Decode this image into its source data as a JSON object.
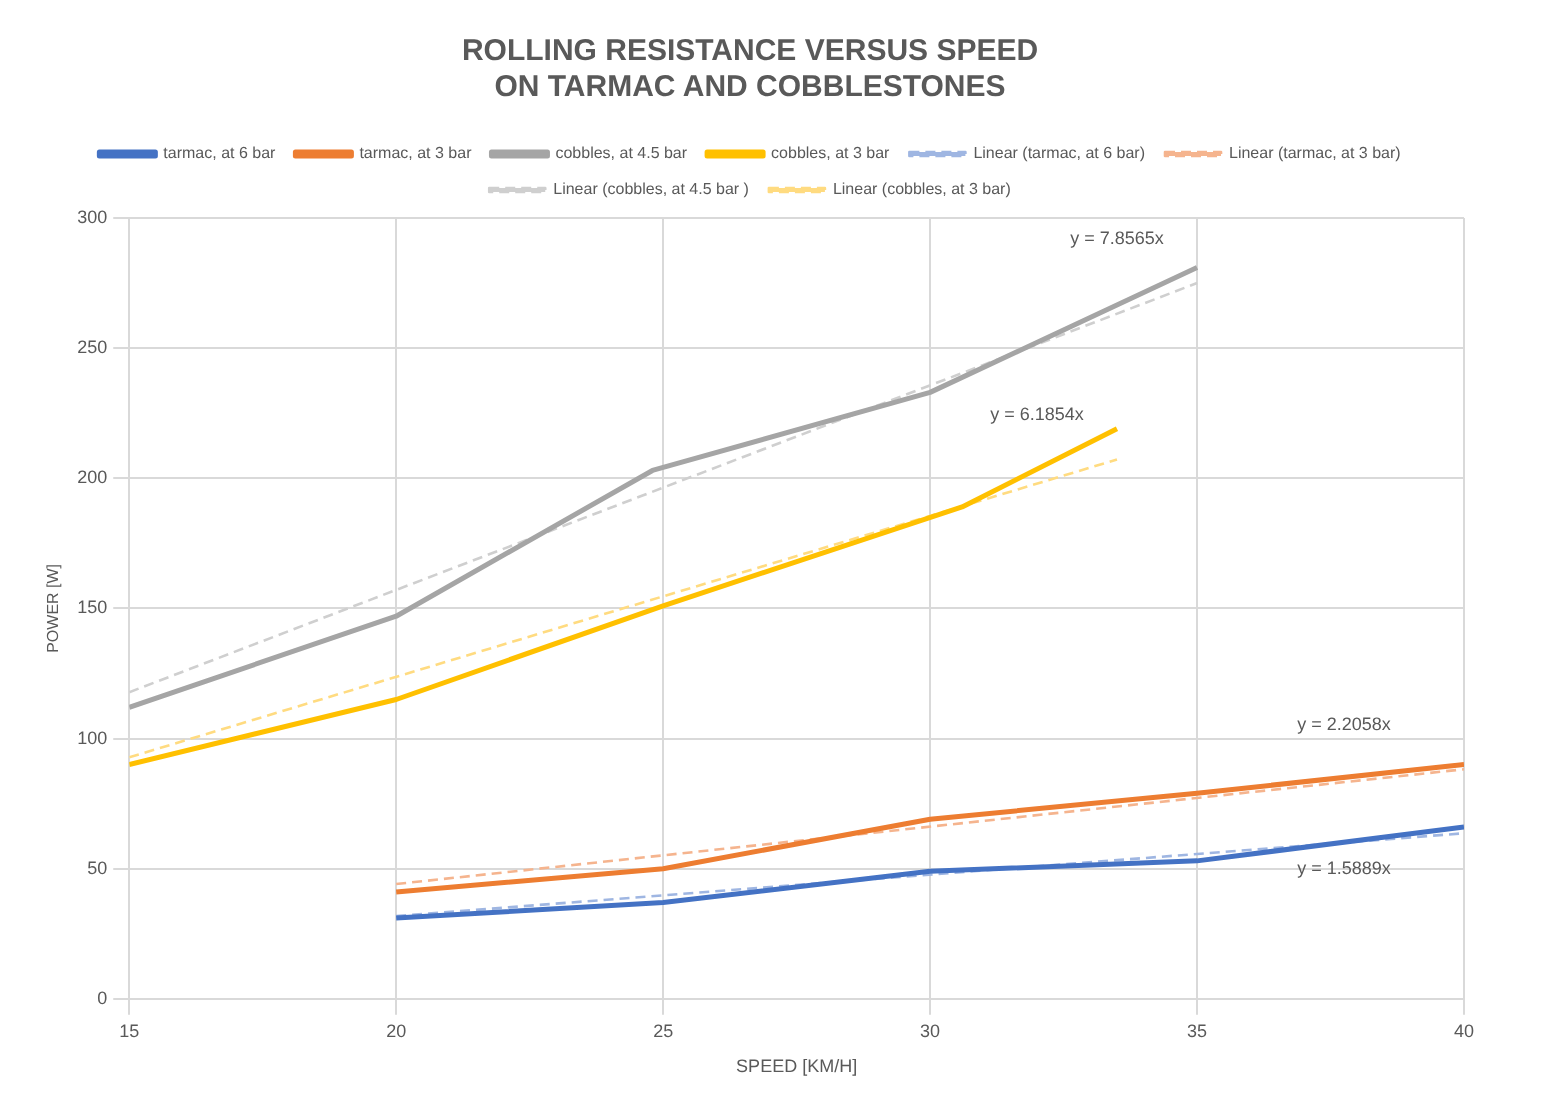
{
  "chart_data": {
    "type": "line",
    "title": "ROLLING RESISTANCE VERSUS SPEED\nON TARMAC AND COBBLESTONES",
    "xlabel": "SPEED [KM/H]",
    "ylabel": "POWER [W]",
    "xlim": [
      15,
      40
    ],
    "xticks": [
      15,
      20,
      25,
      30,
      35,
      40
    ],
    "ylim": [
      0,
      300
    ],
    "yticks": [
      0,
      50,
      100,
      150,
      200,
      250,
      300
    ],
    "grid": true,
    "legend": "top",
    "marker": "none",
    "series": [
      {
        "name": "tarmac, at 6 bar",
        "color": "#4472c4",
        "type": "line",
        "line_style": "solid",
        "x": [
          20,
          25,
          30,
          35,
          40
        ],
        "values": [
          31,
          37,
          49,
          53,
          66
        ]
      },
      {
        "name": "tarmac, at 3 bar",
        "color": "#ed7d31",
        "type": "line",
        "line_style": "solid",
        "x": [
          20,
          25,
          30,
          35,
          40
        ],
        "values": [
          41,
          50,
          69,
          79,
          90
        ]
      },
      {
        "name": "cobbles, at 4.5 bar",
        "color": "#a5a5a5",
        "type": "line",
        "line_style": "solid",
        "x": [
          15,
          20,
          24.8,
          30,
          35
        ],
        "values": [
          112,
          147,
          203,
          233,
          281
        ]
      },
      {
        "name": "cobbles, at 3 bar",
        "color": "#ffc000",
        "type": "line",
        "line_style": "solid",
        "x": [
          15,
          20,
          25,
          30.6,
          33.5
        ],
        "values": [
          90,
          115,
          151,
          189,
          219
        ]
      },
      {
        "name": "Linear (tarmac, at 6 bar)",
        "color": "#9fb6e2",
        "type": "line",
        "line_style": "dashed",
        "x": [
          20,
          40
        ],
        "values": [
          31.8,
          63.6
        ]
      },
      {
        "name": "Linear (tarmac, at 3 bar)",
        "color": "#f5b48e",
        "type": "line",
        "line_style": "dashed",
        "x": [
          20,
          40
        ],
        "values": [
          44.1,
          88.2
        ]
      },
      {
        "name": "Linear (cobbles, at 4.5 bar )",
        "color": "#cfcfcf",
        "type": "line",
        "line_style": "dashed",
        "x": [
          15,
          35
        ],
        "values": [
          117.8,
          275
        ]
      },
      {
        "name": "Linear (cobbles, at 3 bar)",
        "color": "#ffdb80",
        "type": "line",
        "line_style": "dashed",
        "x": [
          15,
          33.5
        ],
        "values": [
          92.8,
          207.2
        ]
      }
    ],
    "annotations": [
      "y = 1.5889x",
      "y = 2.2058x",
      "y = 7.8565x",
      "y = 6.1854x"
    ]
  }
}
